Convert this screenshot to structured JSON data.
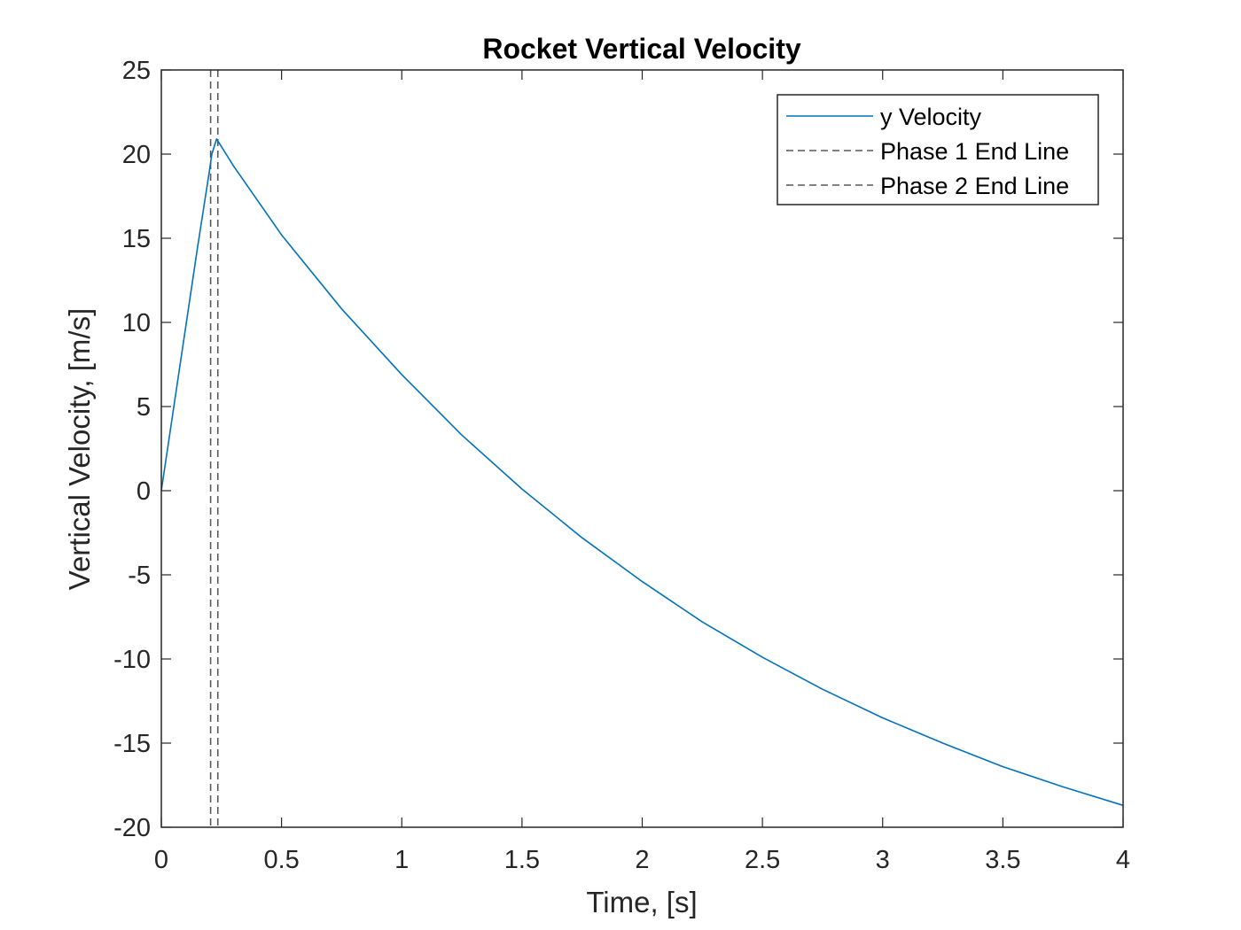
{
  "chart_data": {
    "type": "line",
    "title": "Rocket Vertical Velocity",
    "xlabel": "Time, [s]",
    "ylabel": "Vertical Velocity, [m/s]",
    "xlim": [
      0,
      4
    ],
    "ylim": [
      -20,
      25
    ],
    "x_ticks": [
      0,
      0.5,
      1,
      1.5,
      2,
      2.5,
      3,
      3.5,
      4
    ],
    "x_tick_labels": [
      "0",
      "0.5",
      "1",
      "1.5",
      "2",
      "2.5",
      "3",
      "3.5",
      "4"
    ],
    "y_ticks": [
      -20,
      -15,
      -10,
      -5,
      0,
      5,
      10,
      15,
      20,
      25
    ],
    "y_tick_labels": [
      "-20",
      "-15",
      "-10",
      "-5",
      "0",
      "5",
      "10",
      "15",
      "20",
      "25"
    ],
    "grid": false,
    "legend_position": "top-right",
    "series": [
      {
        "name": "y Velocity",
        "color": "#0072BD",
        "style": "solid",
        "x": [
          0,
          0.05,
          0.1,
          0.15,
          0.2,
          0.21,
          0.23,
          0.3,
          0.5,
          0.75,
          1.0,
          1.25,
          1.5,
          1.75,
          2.0,
          2.25,
          2.5,
          2.75,
          3.0,
          3.25,
          3.5,
          3.75,
          4.0
        ],
        "y": [
          0,
          4.8,
          9.6,
          14.4,
          19.0,
          20.0,
          20.9,
          19.3,
          15.2,
          10.8,
          6.9,
          3.3,
          0.1,
          -2.8,
          -5.4,
          -7.8,
          -9.9,
          -11.8,
          -13.5,
          -15.0,
          -16.4,
          -17.6,
          -18.7
        ]
      },
      {
        "name": "Phase 1 End Line",
        "color": "#595959",
        "style": "dashed",
        "x_value": 0.205
      },
      {
        "name": "Phase 2 End Line",
        "color": "#595959",
        "style": "dashed",
        "x_value": 0.235
      }
    ]
  }
}
